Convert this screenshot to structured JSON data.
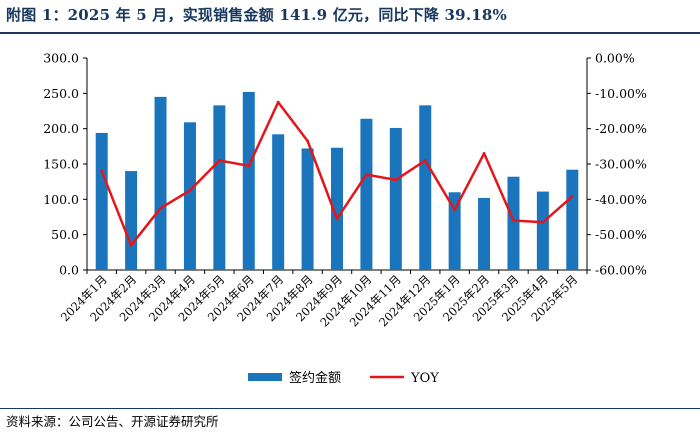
{
  "title": "附图 1：2025 年 5 月，实现销售金额 141.9 亿元，同比下降 39.18%",
  "source": "资料来源：公司公告、开源证券研究所",
  "chart_data": {
    "type": "bar",
    "title": "",
    "categories": [
      "2024年1月",
      "2024年2月",
      "2024年3月",
      "2024年4月",
      "2024年5月",
      "2024年6月",
      "2024年7月",
      "2024年8月",
      "2024年9月",
      "2024年10月",
      "2024年11月",
      "2024年12月",
      "2025年1月",
      "2025年2月",
      "2025年3月",
      "2025年4月",
      "2025年5月"
    ],
    "series": [
      {
        "name": "签约金额",
        "type": "bar",
        "axis": "left",
        "color": "#1b75bc",
        "values": [
          194,
          140,
          245,
          209,
          233,
          252,
          192,
          172,
          173,
          214,
          201,
          233,
          110,
          102,
          132,
          111,
          141.9
        ]
      },
      {
        "name": "YOY",
        "type": "line",
        "axis": "right",
        "color": "#e3171b",
        "values": [
          -32,
          -53,
          -42.5,
          -37.5,
          -29,
          -30.5,
          -12.5,
          -23.5,
          -45.5,
          -33,
          -34.5,
          -29,
          -43,
          -27,
          -46,
          -46.5,
          -39.18
        ]
      }
    ],
    "y_left": {
      "min": 0,
      "max": 300,
      "step": 50,
      "ticks": [
        "0.0",
        "50.0",
        "100.0",
        "150.0",
        "200.0",
        "250.0",
        "300.0"
      ]
    },
    "y_right": {
      "min": -60,
      "max": 0,
      "step": 10,
      "ticks": [
        "-60.00%",
        "-50.00%",
        "-40.00%",
        "-30.00%",
        "-20.00%",
        "-10.00%",
        "0.00%"
      ]
    },
    "grid": false,
    "legend": "bottom-center"
  }
}
